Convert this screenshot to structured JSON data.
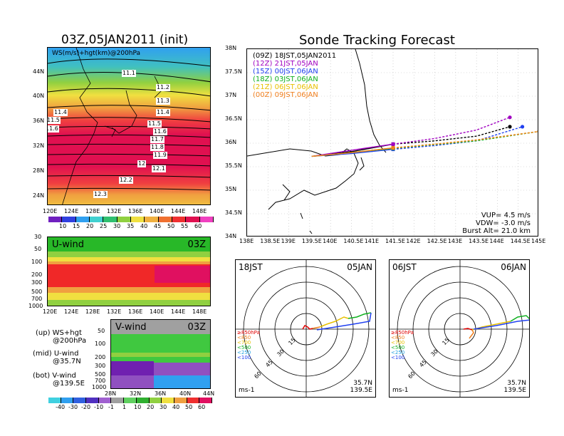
{
  "left": {
    "title": "03Z,05JAN2011 (init)",
    "map_label": "WS(m/s)+hgt(km)@200hPa",
    "lat_ticks": [
      "44N",
      "40N",
      "36N",
      "32N",
      "28N",
      "24N"
    ],
    "lon_ticks": [
      "120E",
      "124E",
      "128E",
      "132E",
      "136E",
      "140E",
      "144E",
      "148E"
    ],
    "contour_labels": [
      "11.1",
      "11.2",
      "11.3",
      "11.4",
      "11.4",
      "11.5",
      "11.5",
      "11.6",
      "11.6",
      "11.7",
      "11.8",
      "11.9",
      "12",
      "12.1",
      "12.2",
      "12.3"
    ],
    "colorbar1": [
      "10",
      "15",
      "20",
      "25",
      "30",
      "35",
      "40",
      "45",
      "50",
      "55",
      "60"
    ],
    "uwind": {
      "label": "U-wind",
      "time": "03Z",
      "p_ticks": [
        "30",
        "50",
        "100",
        "200",
        "300",
        "500",
        "700",
        "1000"
      ],
      "lon_ticks": [
        "120E",
        "124E",
        "128E",
        "132E",
        "136E",
        "140E",
        "144E",
        "148E"
      ]
    },
    "vwind": {
      "label": "V-wind",
      "time": "03Z",
      "p_ticks": [
        "50",
        "100",
        "200",
        "300",
        "500",
        "700",
        "1000"
      ],
      "lat_ticks": [
        "28N",
        "32N",
        "36N",
        "40N",
        "44N"
      ]
    },
    "notes": [
      "(up) WS+hgt",
      "@200hPa",
      "(mid) U-wind",
      "@35.7N",
      "(bot) V-wind",
      "@139.5E"
    ],
    "colorbar2": [
      "-40",
      "-30",
      "-20",
      "-10",
      "-1",
      "1",
      "10",
      "20",
      "30",
      "40",
      "50",
      "60"
    ]
  },
  "forecast": {
    "title": "Sonde Tracking Forecast",
    "lat_ticks": [
      "38N",
      "37.5N",
      "37N",
      "36.5N",
      "36N",
      "35.5N",
      "35N",
      "34.5N",
      "34N"
    ],
    "lon_ticks": [
      "138E",
      "138.5E",
      "139E",
      "139.5E",
      "140E",
      "140.5E",
      "141E",
      "141.5E",
      "142E",
      "142.5E",
      "143E",
      "143.5E",
      "144E",
      "144.5E",
      "145E"
    ],
    "legend": [
      {
        "code": "(09Z)",
        "time": "18JST,05JAN2011",
        "color": "#000000"
      },
      {
        "code": "(12Z)",
        "time": "21JST,05JAN",
        "color": "#a000c0"
      },
      {
        "code": "(15Z)",
        "time": "00JST,06JAN",
        "color": "#2040f0"
      },
      {
        "code": "(18Z)",
        "time": "03JST,06JAN",
        "color": "#10b020"
      },
      {
        "code": "(21Z)",
        "time": "06JST,06JAN",
        "color": "#e8c000"
      },
      {
        "code": "(00Z)",
        "time": "09JST,06JAN",
        "color": "#f08020"
      }
    ],
    "params": [
      "VUP=  4.5 m/s",
      "VDW= -3.0 m/s",
      "Burst Alt= 21.0 km"
    ]
  },
  "hodo1": {
    "time": "18JST",
    "date": "05JAN",
    "rings": [
      "15",
      "30",
      "45",
      "60"
    ],
    "unit": "ms-1",
    "lat": "35.7N",
    "lon": "139.5E",
    "levels": [
      "≥850hPa",
      "<850",
      "<700",
      "<500",
      "<250",
      "<100"
    ]
  },
  "hodo2": {
    "time": "06JST",
    "date": "06JAN",
    "rings": [
      "15",
      "30",
      "45",
      "60"
    ],
    "unit": "ms-1",
    "lat": "35.7N",
    "lon": "139.5E",
    "levels": [
      "≥850hPa",
      "<850",
      "<700",
      "<500",
      "<250",
      "<100"
    ]
  },
  "chart_data": [
    {
      "type": "heatmap",
      "title": "03Z,05JAN2011 (init)",
      "xlabel": "",
      "ylabel": "",
      "x_range": [
        "120E",
        "150E"
      ],
      "y_range": [
        "22N",
        "48N"
      ]
    },
    {
      "type": "line",
      "title": "Sonde Tracking Forecast",
      "series": [
        {
          "name": "(09Z) 18JST,05JAN2011",
          "x": [
            139.55,
            140.5,
            141.5,
            142.5,
            143.5,
            144.3
          ],
          "y": [
            35.72,
            35.82,
            35.98,
            36.05,
            36.15,
            36.35
          ]
        },
        {
          "name": "(12Z) 21JST,05JAN",
          "x": [
            139.55,
            140.5,
            141.5,
            142.5,
            143.5,
            144.3
          ],
          "y": [
            35.72,
            35.85,
            35.98,
            36.1,
            36.28,
            36.55
          ]
        },
        {
          "name": "(15Z) 00JST,06JAN",
          "x": [
            139.55,
            140.5,
            141.5,
            142.5,
            143.5,
            144.6
          ],
          "y": [
            35.72,
            35.78,
            35.87,
            35.95,
            36.05,
            36.35
          ]
        },
        {
          "name": "(18Z) 03JST,06JAN",
          "x": [
            139.55,
            140.5,
            141.5,
            142.5,
            143.5,
            145.0
          ],
          "y": [
            35.72,
            35.8,
            35.89,
            35.97,
            36.05,
            36.25
          ]
        },
        {
          "name": "(21Z) 06JST,06JAN",
          "x": [
            139.55,
            140.5,
            141.5,
            142.5,
            143.5,
            145.0
          ],
          "y": [
            35.72,
            35.8,
            35.9,
            35.98,
            36.07,
            36.25
          ]
        },
        {
          "name": "(00Z) 09JST,06JAN",
          "x": [
            139.55,
            140.5,
            141.5,
            142.5,
            143.5,
            145.0
          ],
          "y": [
            35.72,
            35.8,
            35.9,
            35.98,
            36.07,
            36.25
          ]
        }
      ],
      "xlim": [
        138,
        145
      ],
      "ylim": [
        34,
        38
      ]
    }
  ]
}
